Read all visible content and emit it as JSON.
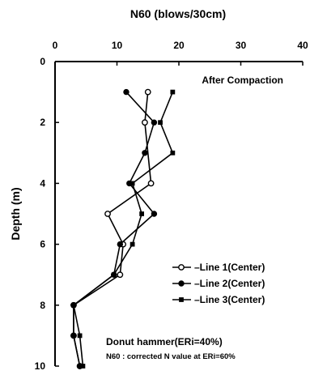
{
  "chart_data": {
    "type": "line",
    "title": "",
    "xlabel": "N60 (blows/30cm)",
    "ylabel": "Depth (m)",
    "x_axis_position": "top",
    "xlim": [
      0,
      40
    ],
    "ylim": [
      0,
      10
    ],
    "y_inverted": true,
    "xticks": [
      "0",
      "10",
      "20",
      "30",
      "40"
    ],
    "yticks": [
      "0",
      "2",
      "4",
      "6",
      "8",
      "10"
    ],
    "grid": false,
    "legend_position": "right",
    "annotations": {
      "top": "After Compaction",
      "bottom_line1": "Donut hammer(ERi=40%)",
      "bottom_line2": "N60 : corrected N value at ERi=60%"
    },
    "series": [
      {
        "name": "Line 1(Center)",
        "marker": "open-circle",
        "color": "#000000",
        "points": [
          {
            "x": 15.0,
            "y": 1.0
          },
          {
            "x": 14.5,
            "y": 2.0
          },
          {
            "x": 15.5,
            "y": 4.0
          },
          {
            "x": 8.5,
            "y": 5.0
          },
          {
            "x": 11.0,
            "y": 6.0
          },
          {
            "x": 10.5,
            "y": 7.0
          },
          {
            "x": 3.0,
            "y": 8.0
          },
          {
            "x": 3.0,
            "y": 9.0
          },
          {
            "x": 4.0,
            "y": 10.0
          }
        ]
      },
      {
        "name": "Line 2(Center)",
        "marker": "filled-circle",
        "color": "#000000",
        "points": [
          {
            "x": 11.5,
            "y": 1.0
          },
          {
            "x": 16.0,
            "y": 2.0
          },
          {
            "x": 14.5,
            "y": 3.0
          },
          {
            "x": 12.0,
            "y": 4.0
          },
          {
            "x": 16.0,
            "y": 5.0
          },
          {
            "x": 10.5,
            "y": 6.0
          },
          {
            "x": 9.5,
            "y": 7.0
          },
          {
            "x": 3.0,
            "y": 8.0
          },
          {
            "x": 3.0,
            "y": 9.0
          },
          {
            "x": 4.0,
            "y": 10.0
          }
        ]
      },
      {
        "name": "Line 3(Center)",
        "marker": "filled-square",
        "color": "#000000",
        "points": [
          {
            "x": 19.0,
            "y": 1.0
          },
          {
            "x": 17.0,
            "y": 2.0
          },
          {
            "x": 19.0,
            "y": 3.0
          },
          {
            "x": 12.5,
            "y": 4.0
          },
          {
            "x": 14.0,
            "y": 5.0
          },
          {
            "x": 12.5,
            "y": 6.0
          },
          {
            "x": 9.5,
            "y": 7.0
          },
          {
            "x": 3.0,
            "y": 8.0
          },
          {
            "x": 4.0,
            "y": 9.0
          },
          {
            "x": 4.5,
            "y": 10.0
          }
        ]
      }
    ]
  }
}
